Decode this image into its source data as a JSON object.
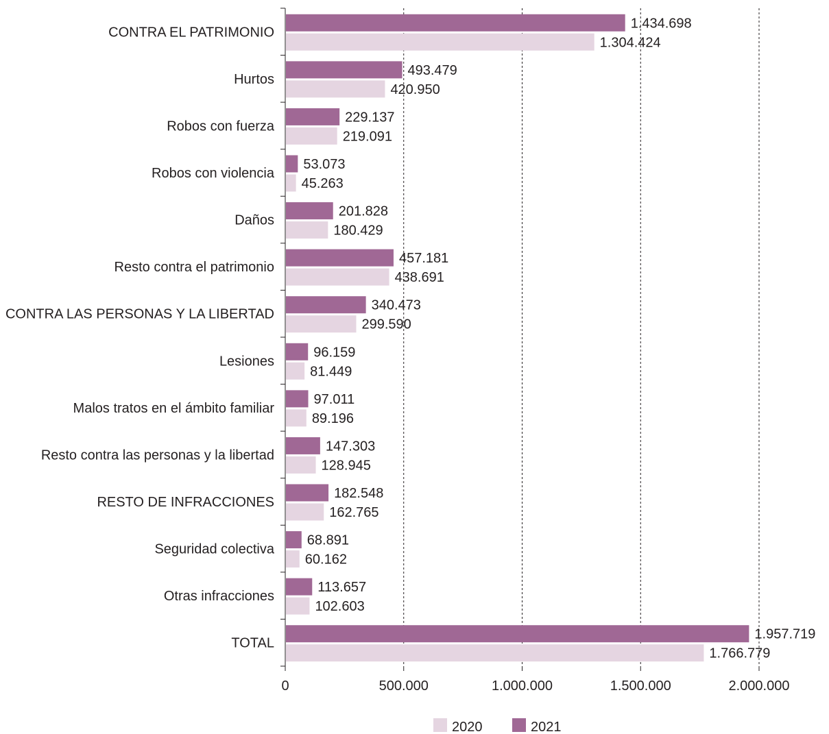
{
  "chart_data": {
    "type": "bar",
    "orientation": "horizontal",
    "categories": [
      "CONTRA EL PATRIMONIO",
      "Hurtos",
      "Robos con fuerza",
      "Robos con violencia",
      "Daños",
      "Resto contra el patrimonio",
      "CONTRA LAS PERSONAS Y LA LIBERTAD",
      "Lesiones",
      "Malos tratos en el ámbito familiar",
      "Resto contra las personas y la libertad",
      "RESTO DE INFRACCIONES",
      "Seguridad colectiva",
      "Otras infracciones",
      "TOTAL"
    ],
    "series": [
      {
        "name": "2021",
        "color": "#a06895",
        "values": [
          1434698,
          493479,
          229137,
          53073,
          201828,
          457181,
          340473,
          96159,
          97011,
          147303,
          182548,
          68891,
          113657,
          1957719
        ],
        "labels": [
          "1.434.698",
          "493.479",
          "229.137",
          "53.073",
          "201.828",
          "457.181",
          "340.473",
          "96.159",
          "97.011",
          "147.303",
          "182.548",
          "68.891",
          "113.657",
          "1.957.719"
        ]
      },
      {
        "name": "2020",
        "color": "#e5d5e1",
        "values": [
          1304424,
          420950,
          219091,
          45263,
          180429,
          438691,
          299590,
          81449,
          89196,
          128945,
          162765,
          60162,
          102603,
          1766779
        ],
        "labels": [
          "1.304.424",
          "420.950",
          "219.091",
          "45.263",
          "180.429",
          "438.691",
          "299.590",
          "81.449",
          "89.196",
          "128.945",
          "162.765",
          "60.162",
          "102.603",
          "1.766.779"
        ]
      }
    ],
    "xlim": [
      0,
      2000000
    ],
    "xticks": [
      0,
      500000,
      1000000,
      1500000,
      2000000
    ],
    "xtick_labels": [
      "0",
      "500.000",
      "1.000.000",
      "1.500.000",
      "2.000.000"
    ],
    "grid": "vertical dashed",
    "legend": {
      "position": "bottom",
      "entries": [
        {
          "name": "2020",
          "color": "#e5d5e1"
        },
        {
          "name": "2021",
          "color": "#a06895"
        }
      ]
    },
    "title": "",
    "xlabel": "",
    "ylabel": ""
  }
}
